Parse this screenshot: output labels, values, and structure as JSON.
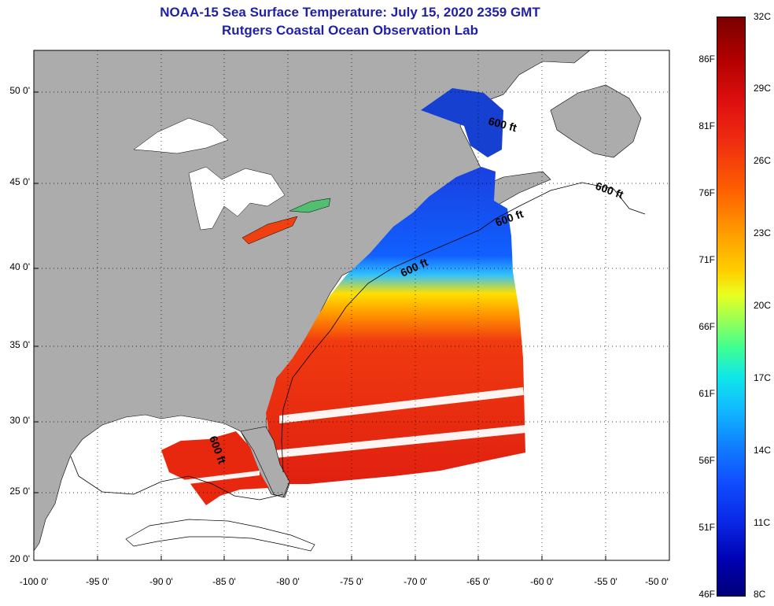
{
  "title_line1": "NOAA-15 Sea Surface Temperature:  July 15, 2020 2359 GMT",
  "title_line2": "Rutgers Coastal Ocean Observation Lab",
  "latitude_labels": [
    "50 0'",
    "45 0'",
    "40 0'",
    "35 0'",
    "30 0'",
    "25 0'",
    "20 0'"
  ],
  "longitude_labels": [
    "-100 0'",
    "-95 0'",
    "-90 0'",
    "-85 0'",
    "-80 0'",
    "-75 0'",
    "-70 0'",
    "-65 0'",
    "-60 0'",
    "-55 0'",
    "-50 0'"
  ],
  "isobath_labels": [
    "600 ft",
    "600 ft",
    "600 ft",
    "600 ft",
    "600 ft"
  ],
  "colorbar": {
    "fahrenheit": [
      "86F",
      "81F",
      "76F",
      "71F",
      "66F",
      "61F",
      "56F",
      "51F",
      "46F"
    ],
    "celsius": [
      "32C",
      "29C",
      "26C",
      "23C",
      "20C",
      "17C",
      "14C",
      "11C",
      "8C"
    ]
  },
  "colors": {
    "title": "#1f1fa8",
    "land": "#acacac",
    "no_data_water": "#ffffff"
  }
}
